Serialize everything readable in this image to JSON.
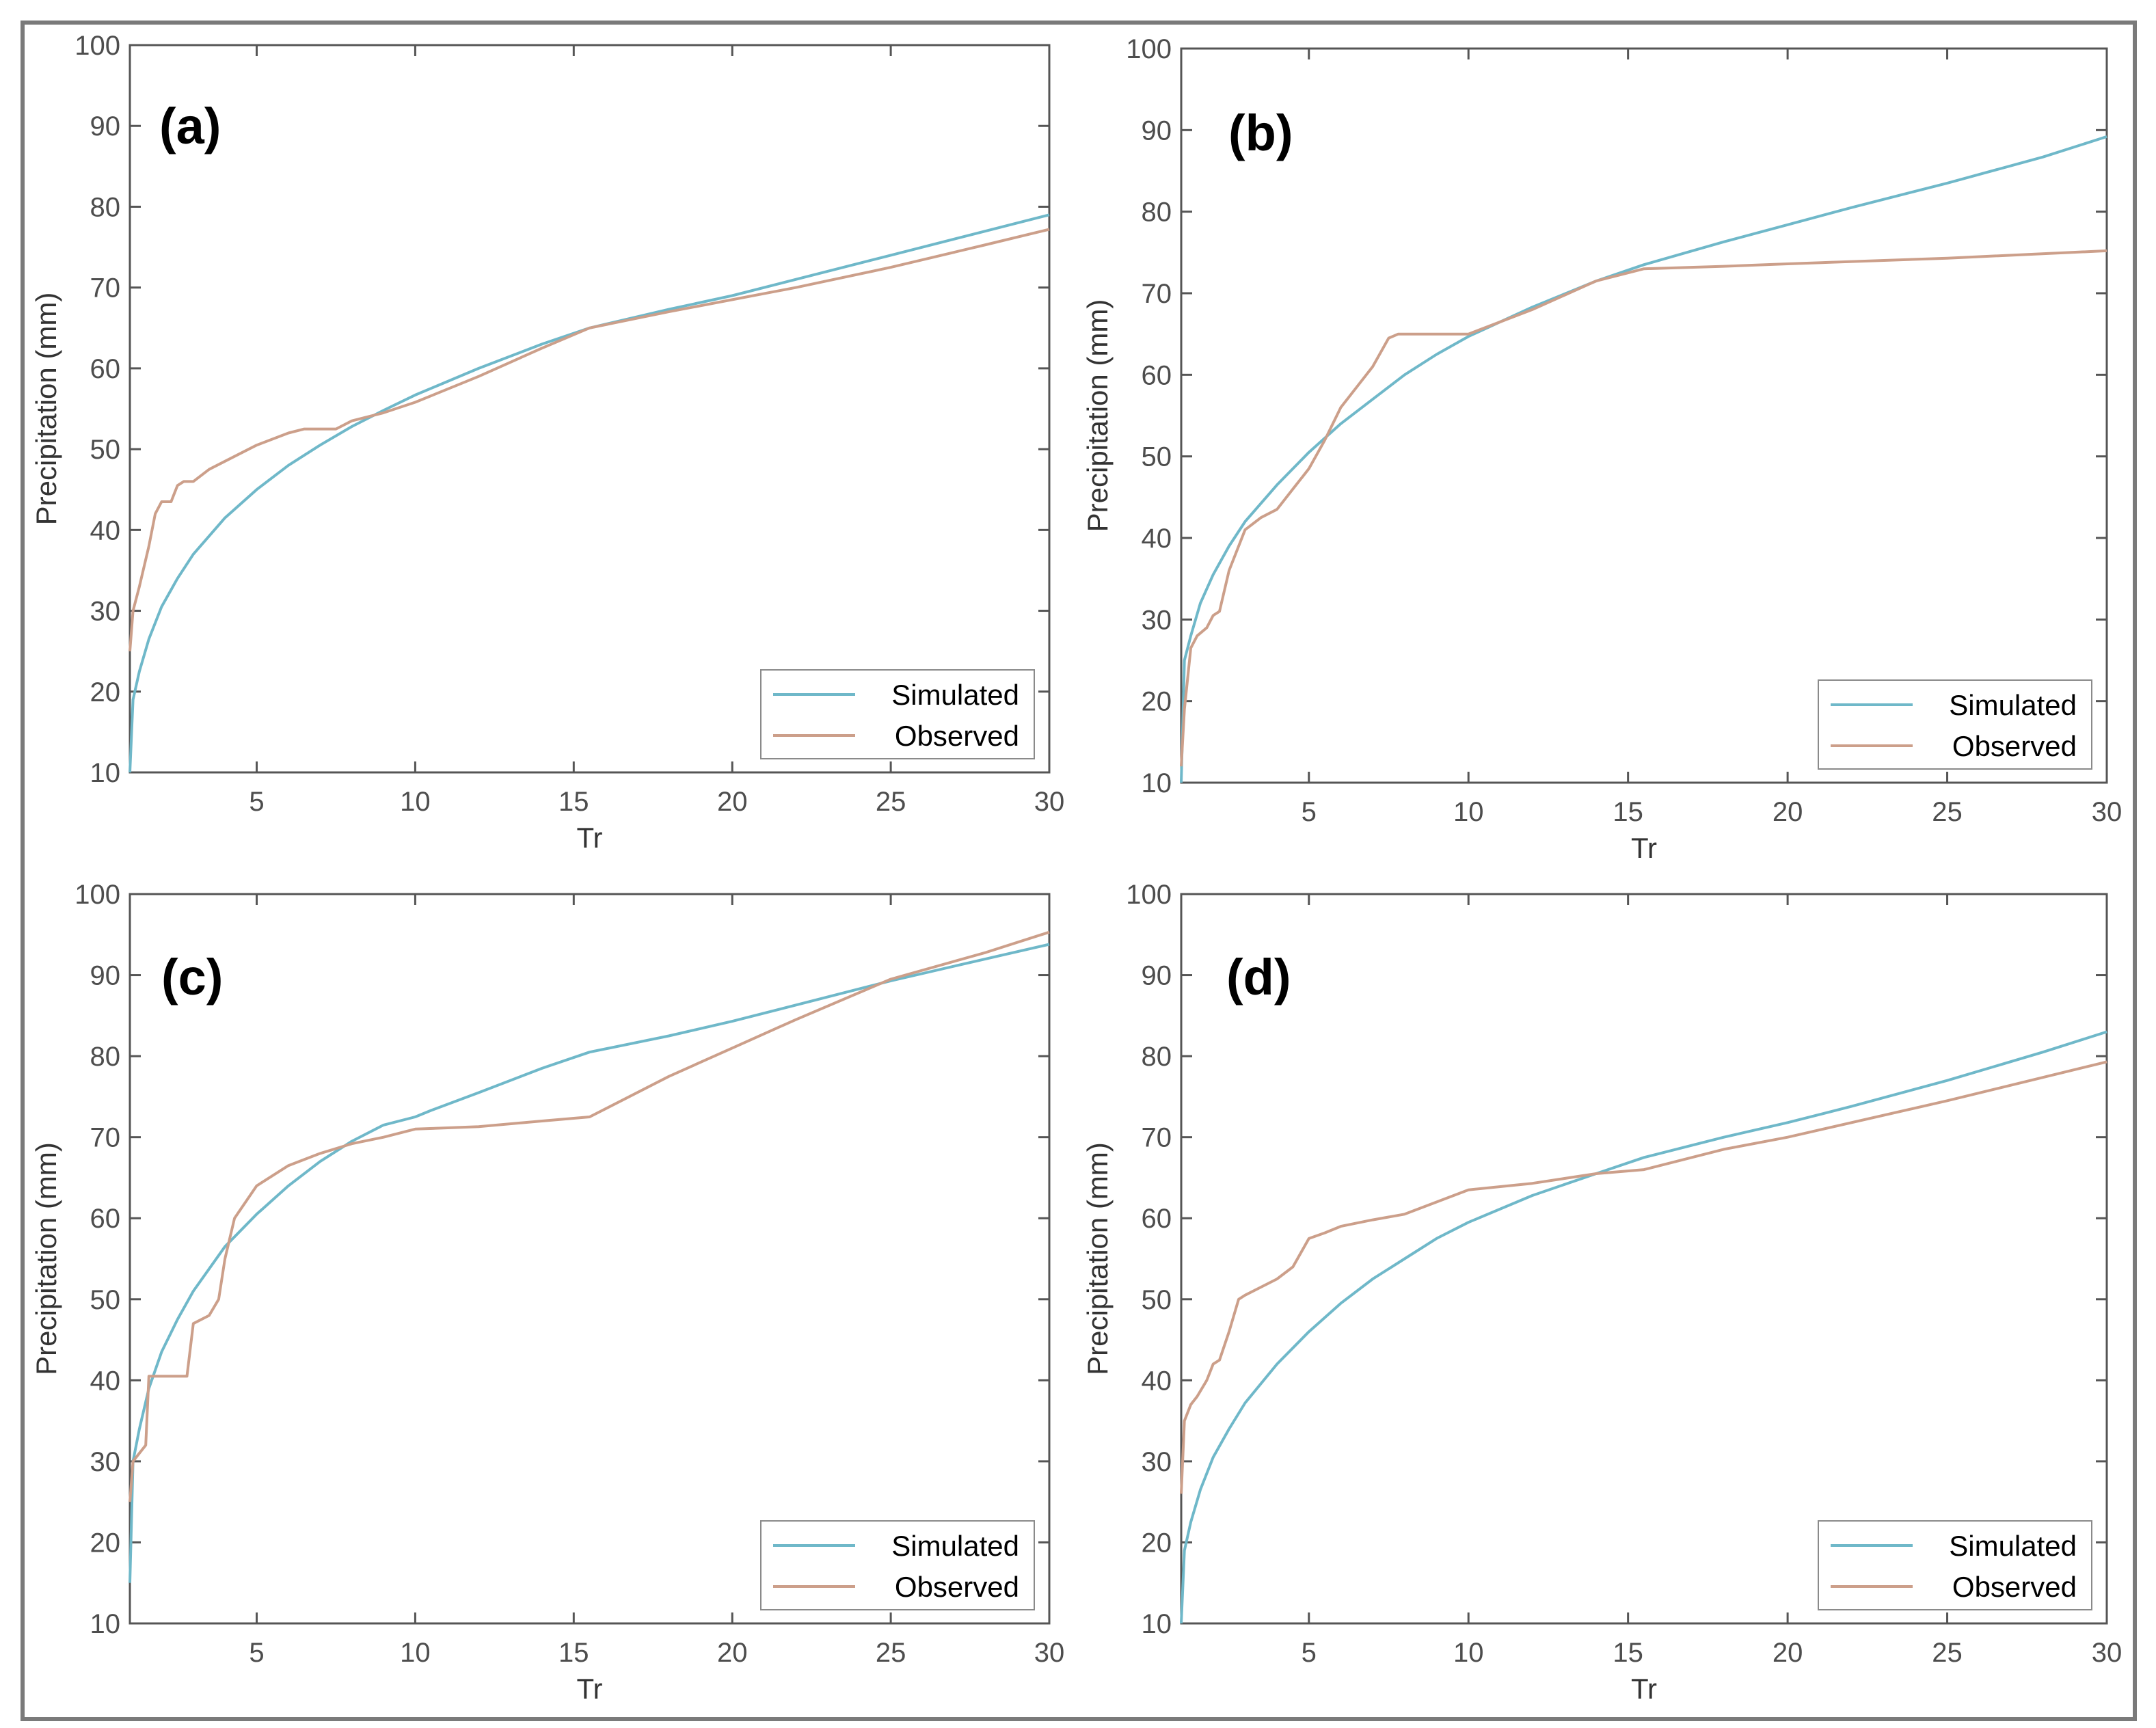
{
  "colors": {
    "simulated": "#6fb8c9",
    "observed": "#cc9f8a",
    "axis": "#555555",
    "frame": "#7a7a7a"
  },
  "chart_data": [
    {
      "type": "line",
      "panel_label": "(a)",
      "xlabel": "Tr",
      "ylabel": "Precipitation (mm)",
      "xlim": [
        1,
        30
      ],
      "ylim": [
        10,
        100
      ],
      "xticks": [
        "5",
        "10",
        "15",
        "20",
        "25",
        "30"
      ],
      "yticks": [
        "10",
        "20",
        "30",
        "40",
        "50",
        "60",
        "70",
        "80",
        "90",
        "100"
      ],
      "legend": "bottom-right",
      "series": [
        {
          "name": "Simulated",
          "x": [
            1,
            1.1,
            1.3,
            1.6,
            2,
            2.5,
            3,
            4,
            5,
            6,
            7,
            8,
            9,
            10,
            12,
            14,
            15.5,
            18,
            20,
            22,
            25,
            28,
            30
          ],
          "y": [
            10,
            19,
            22.5,
            26.5,
            30.5,
            34,
            37,
            41.5,
            45,
            48,
            50.5,
            52.8,
            54.8,
            56.7,
            60,
            63,
            65,
            67.3,
            69,
            71,
            74,
            77,
            79
          ]
        },
        {
          "name": "Observed",
          "x": [
            1,
            1.1,
            1.3,
            1.6,
            1.8,
            2,
            2.3,
            2.5,
            2.7,
            3,
            3.5,
            4,
            5,
            6,
            6.5,
            7.5,
            8,
            9,
            10,
            12,
            14,
            15.5,
            18,
            20,
            22,
            25,
            28,
            30
          ],
          "y": [
            25,
            30,
            33,
            38,
            42,
            43.5,
            43.5,
            45.5,
            46,
            46,
            47.5,
            48.5,
            50.5,
            52,
            52.5,
            52.5,
            53.5,
            54.5,
            55.8,
            59,
            62.5,
            65,
            67,
            68.5,
            70,
            72.5,
            75.3,
            77.2
          ]
        }
      ]
    },
    {
      "type": "line",
      "panel_label": "(b)",
      "xlabel": "Tr",
      "ylabel": "Precipitation (mm)",
      "xlim": [
        1,
        30
      ],
      "ylim": [
        10,
        100
      ],
      "xticks": [
        "5",
        "10",
        "15",
        "20",
        "25",
        "30"
      ],
      "yticks": [
        "10",
        "20",
        "30",
        "40",
        "50",
        "60",
        "70",
        "80",
        "90",
        "100"
      ],
      "legend": "bottom-right",
      "series": [
        {
          "name": "Simulated",
          "x": [
            1,
            1.1,
            1.3,
            1.6,
            2,
            2.5,
            3,
            4,
            5,
            6,
            7,
            8,
            9,
            10,
            12,
            14,
            15.5,
            18,
            20,
            22,
            25,
            28,
            30
          ],
          "y": [
            10,
            25,
            28,
            32,
            35.5,
            39,
            42,
            46.5,
            50.5,
            54,
            57,
            60,
            62.5,
            64.7,
            68.3,
            71.5,
            73.5,
            76.3,
            78.4,
            80.5,
            83.5,
            86.7,
            89.2
          ]
        },
        {
          "name": "Observed",
          "x": [
            1,
            1.1,
            1.3,
            1.5,
            1.8,
            2,
            2.2,
            2.5,
            3,
            3.5,
            4,
            4.5,
            5,
            5.5,
            6,
            6.5,
            7,
            7.5,
            7.8,
            9,
            10,
            12,
            14,
            15.5,
            18,
            20,
            25,
            30
          ],
          "y": [
            12,
            19,
            26.5,
            28,
            29,
            30.5,
            31,
            36,
            41,
            42.5,
            43.5,
            46,
            48.5,
            52,
            56,
            58.5,
            61,
            64.5,
            65,
            65,
            65,
            68,
            71.5,
            73,
            73.3,
            73.6,
            74.3,
            75.2
          ]
        }
      ]
    },
    {
      "type": "line",
      "panel_label": "(c)",
      "xlabel": "Tr",
      "ylabel": "Precipitation (mm)",
      "xlim": [
        1,
        30
      ],
      "ylim": [
        10,
        100
      ],
      "xticks": [
        "5",
        "10",
        "15",
        "20",
        "25",
        "30"
      ],
      "yticks": [
        "10",
        "20",
        "30",
        "40",
        "50",
        "60",
        "70",
        "80",
        "90",
        "100"
      ],
      "legend": "bottom-right",
      "series": [
        {
          "name": "Simulated",
          "x": [
            1,
            1.1,
            1.3,
            1.6,
            2,
            2.5,
            3,
            4,
            5,
            6,
            7,
            8,
            9,
            10,
            10.5,
            12,
            14,
            15.5,
            18,
            20,
            22,
            25,
            28,
            30
          ],
          "y": [
            15,
            30,
            34,
            39,
            43.5,
            47.5,
            51,
            56.5,
            60.5,
            64,
            67,
            69.5,
            71.5,
            72.5,
            73.3,
            75.5,
            78.5,
            80.5,
            82.5,
            84.3,
            86.3,
            89.3,
            92,
            93.8
          ]
        },
        {
          "name": "Observed",
          "x": [
            1,
            1.1,
            1.3,
            1.5,
            1.6,
            2,
            2.5,
            2.8,
            3,
            3.5,
            3.8,
            4,
            4.3,
            5,
            6,
            7,
            8,
            9,
            10,
            12,
            14,
            15.5,
            18,
            20,
            22,
            25,
            28,
            30
          ],
          "y": [
            25,
            30,
            31,
            32,
            40.5,
            40.5,
            40.5,
            40.5,
            47,
            48,
            50,
            55,
            60,
            64,
            66.5,
            68,
            69.2,
            70,
            71,
            71.3,
            72,
            72.5,
            77.5,
            81,
            84.5,
            89.5,
            92.8,
            95.3
          ]
        }
      ]
    },
    {
      "type": "line",
      "panel_label": "(d)",
      "xlabel": "Tr",
      "ylabel": "Precipitation (mm)",
      "xlim": [
        1,
        30
      ],
      "ylim": [
        10,
        100
      ],
      "xticks": [
        "5",
        "10",
        "15",
        "20",
        "25",
        "30"
      ],
      "yticks": [
        "10",
        "20",
        "30",
        "40",
        "50",
        "60",
        "70",
        "80",
        "90",
        "100"
      ],
      "legend": "bottom-right",
      "series": [
        {
          "name": "Simulated",
          "x": [
            1,
            1.1,
            1.3,
            1.6,
            2,
            2.5,
            3,
            4,
            5,
            6,
            7,
            8,
            9,
            10,
            12,
            14,
            15.5,
            18,
            20,
            22,
            25,
            28,
            30
          ],
          "y": [
            10,
            19,
            22.5,
            26.5,
            30.5,
            34,
            37.2,
            42,
            46,
            49.5,
            52.5,
            55,
            57.5,
            59.5,
            62.8,
            65.5,
            67.5,
            70,
            71.8,
            73.8,
            77,
            80.5,
            83
          ]
        },
        {
          "name": "Observed",
          "x": [
            1,
            1.1,
            1.3,
            1.5,
            1.8,
            2,
            2.2,
            2.5,
            2.8,
            3,
            3.5,
            4,
            4.5,
            5,
            5.5,
            6,
            7,
            8,
            9,
            10,
            12,
            14,
            15.5,
            18,
            20,
            25,
            30
          ],
          "y": [
            26,
            35,
            37,
            38,
            40,
            42,
            42.5,
            46,
            50,
            50.5,
            51.5,
            52.5,
            54,
            57.5,
            58.2,
            59,
            59.8,
            60.5,
            62,
            63.5,
            64.3,
            65.5,
            66,
            68.5,
            70,
            74.5,
            79.3
          ]
        }
      ]
    }
  ]
}
